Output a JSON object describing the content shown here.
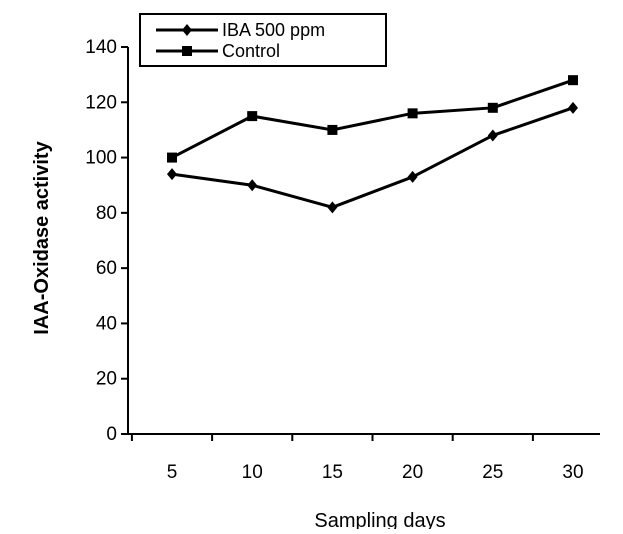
{
  "chart_data": {
    "type": "line",
    "title": "",
    "xlabel": "Sampling days",
    "ylabel": "IAA-Oxidase activity",
    "categories": [
      "5",
      "10",
      "15",
      "20",
      "25",
      "30"
    ],
    "x": [
      5,
      10,
      15,
      20,
      25,
      30
    ],
    "ylim": [
      0,
      140
    ],
    "yticks": [
      0,
      20,
      40,
      60,
      80,
      100,
      120,
      140
    ],
    "grid": false,
    "legend_position": "top-left",
    "series": [
      {
        "name": "IBA 500  ppm",
        "marker": "diamond",
        "color": "#000000",
        "values": [
          94,
          90,
          82,
          93,
          108,
          118
        ]
      },
      {
        "name": "Control",
        "marker": "square",
        "color": "#000000",
        "values": [
          100,
          115,
          110,
          116,
          118,
          128
        ]
      }
    ]
  }
}
